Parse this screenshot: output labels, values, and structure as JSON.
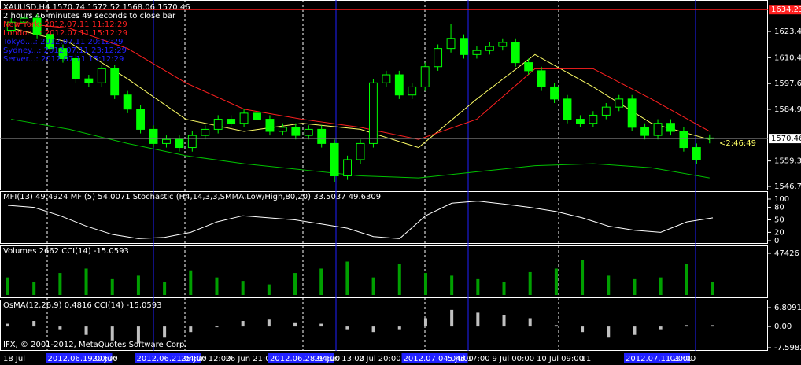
{
  "chart_data": {
    "type": "candlestick",
    "title": "XAUUSD,H4  1570.74 1572.52 1568.06 1570.46",
    "subtitle": "2 hours 46 minutes 49 seconds to close bar",
    "clocks": [
      {
        "text": "New York: 2012.07.11 11:12:29",
        "color": "#ff2020"
      },
      {
        "text": "London...: 2012.07.11 15:12:29",
        "color": "#ff2020"
      },
      {
        "text": "Tokyo....: 2012.07.11 20:12:29",
        "color": "#2020ff"
      },
      {
        "text": "Sydney...: 2012.07.11 23:12:29",
        "color": "#2020ff"
      },
      {
        "text": "Server...: 2012.07.11 15:12:29",
        "color": "#2020ff"
      }
    ],
    "open": [
      1624,
      1628,
      1630,
      1622,
      1615,
      1610,
      1600,
      1598,
      1605,
      1592,
      1585,
      1575,
      1568,
      1570,
      1566,
      1572,
      1575,
      1580,
      1578,
      1583,
      1580,
      1574,
      1576,
      1572,
      1575,
      1568,
      1552,
      1560,
      1568,
      1598,
      1602,
      1592,
      1596,
      1606,
      1615,
      1620,
      1612,
      1614,
      1616,
      1618,
      1608,
      1604,
      1596,
      1590,
      1580,
      1578,
      1582,
      1586,
      1590,
      1576,
      1572,
      1578,
      1574,
      1566,
      1570.74
    ],
    "high": [
      1630,
      1632,
      1632,
      1624,
      1617,
      1612,
      1602,
      1607,
      1607,
      1594,
      1587,
      1577,
      1572,
      1572,
      1574,
      1577,
      1582,
      1582,
      1585,
      1585,
      1582,
      1578,
      1578,
      1577,
      1577,
      1570,
      1562,
      1570,
      1600,
      1604,
      1604,
      1598,
      1608,
      1617,
      1627,
      1622,
      1616,
      1618,
      1620,
      1620,
      1610,
      1606,
      1598,
      1592,
      1582,
      1584,
      1588,
      1592,
      1592,
      1578,
      1580,
      1580,
      1576,
      1568,
      1572.52
    ],
    "low": [
      1622,
      1626,
      1620,
      1613,
      1608,
      1598,
      1596,
      1596,
      1590,
      1583,
      1573,
      1566,
      1566,
      1564,
      1564,
      1570,
      1573,
      1576,
      1576,
      1578,
      1572,
      1572,
      1570,
      1570,
      1566,
      1549,
      1550,
      1558,
      1566,
      1596,
      1590,
      1590,
      1594,
      1604,
      1613,
      1610,
      1610,
      1612,
      1614,
      1606,
      1602,
      1594,
      1588,
      1578,
      1576,
      1576,
      1580,
      1584,
      1574,
      1570,
      1570,
      1572,
      1564,
      1558,
      1568.06
    ],
    "close": [
      1628,
      1630,
      1622,
      1615,
      1610,
      1600,
      1598,
      1605,
      1592,
      1585,
      1575,
      1568,
      1570,
      1566,
      1572,
      1575,
      1580,
      1578,
      1583,
      1580,
      1574,
      1576,
      1572,
      1575,
      1568,
      1552,
      1560,
      1568,
      1598,
      1602,
      1592,
      1596,
      1606,
      1615,
      1620,
      1612,
      1614,
      1616,
      1618,
      1608,
      1604,
      1596,
      1590,
      1580,
      1578,
      1582,
      1586,
      1590,
      1576,
      1572,
      1578,
      1574,
      1566,
      1560,
      1570.46
    ],
    "bull_color": "#00ff00",
    "bear_color": "#00ff00",
    "moving_averages": [
      {
        "color": "#ffff66",
        "values": [
          1625,
          1618,
          1600,
          1580,
          1574,
          1578,
          1575,
          1566,
          1590,
          1612,
          1596,
          1578,
          1570
        ]
      },
      {
        "color": "#ff2020",
        "values": [
          1628,
          1625,
          1615,
          1598,
          1585,
          1580,
          1576,
          1570,
          1580,
          1605,
          1605,
          1590,
          1574
        ]
      },
      {
        "color": "#00c000",
        "values": [
          1580,
          1575,
          1568,
          1562,
          1558,
          1555,
          1552,
          1551,
          1554,
          1557,
          1558,
          1556,
          1551
        ]
      }
    ],
    "ylim": [
      1545.2,
      1638.2
    ],
    "yticks": [
      {
        "value": 1623.4,
        "label": "1623.40"
      },
      1610.45,
      1597.65,
      {
        "value": 1584.9,
        "label": "1584.90"
      },
      1559.35,
      1546.75
    ],
    "top_level": {
      "value": 1634.23,
      "label": "1634.23"
    },
    "current_price": {
      "value": 1570.46,
      "label": "1570.46"
    },
    "timer": "<2:46:49",
    "x_labels": [
      {
        "label": "18 Jul",
        "highlight": false
      },
      {
        "label": "2012.06.19 00:00",
        "highlight": true
      },
      {
        "label": "20 Jun",
        "highlight": false
      },
      {
        "label": "2012.06.21 04:00",
        "highlight": true
      },
      {
        "label": "25 Jun 12:00",
        "highlight": false
      },
      {
        "label": "26 Jun 21:00",
        "highlight": false
      },
      {
        "label": "2012.06.28 04:00",
        "highlight": true
      },
      {
        "label": "29 Jun 13:00",
        "highlight": false
      },
      {
        "label": "2 Jul 20:00",
        "highlight": false
      },
      {
        "label": "2012.07.04 04:00",
        "highlight": true
      },
      {
        "label": "5 Jul 17:00",
        "highlight": false
      },
      {
        "label": "9 Jul 00:00",
        "highlight": false
      },
      {
        "label": "10 Jul 09:00",
        "highlight": false
      },
      {
        "label": "11",
        "highlight": false
      },
      {
        "label": "2012.07.11 20:00",
        "highlight": true
      },
      {
        "label": "01:00",
        "highlight": false
      }
    ],
    "panels": [
      {
        "kind": "line",
        "label": "MFI(13) 49.4924  MFI(5) 54.0071  Stochastic (H4,14,3,3,SMMA,Low/High,80,20) 33.5037 49.6309",
        "color": "#ffffff",
        "ylim": [
          0,
          100
        ],
        "yticks": [
          0,
          20,
          50,
          80,
          100
        ],
        "values": [
          85,
          80,
          60,
          35,
          15,
          5,
          8,
          20,
          45,
          60,
          55,
          50,
          40,
          30,
          10,
          5,
          60,
          90,
          95,
          88,
          80,
          70,
          55,
          35,
          25,
          20,
          45,
          55
        ]
      },
      {
        "kind": "bars",
        "label": "Volumes 2662  CCI(14) -15.0593",
        "color": "#00a000",
        "ylim": [
          0,
          47426
        ],
        "yticks": [
          47426
        ],
        "values": [
          20000,
          15000,
          25000,
          30000,
          18000,
          22000,
          15000,
          28000,
          20000,
          16000,
          12000,
          25000,
          30000,
          38000,
          20000,
          35000,
          25000,
          22000,
          18000,
          15000,
          26000,
          30000,
          40000,
          22000,
          18000,
          20000,
          35000,
          15000
        ]
      },
      {
        "kind": "bars",
        "label": "OsMA(12,26,9) 0.4816  CCI(14) -15.0593",
        "color": "#c0c0c0",
        "ylim": [
          -7.5982,
          6.8091
        ],
        "yticks": [
          6.8091,
          {
            "value": 0,
            "label": "0.00"
          },
          -7.5982
        ],
        "values": [
          1,
          2,
          -1,
          -3,
          -5,
          -6,
          -4,
          -2,
          0,
          2,
          2.5,
          1.5,
          1,
          -1,
          -2,
          -1,
          3,
          6,
          5,
          4,
          3,
          0.5,
          -2,
          -4,
          -3,
          -1,
          0.5,
          0.4816
        ]
      }
    ],
    "copyright": "IFX, © 2001-2012, MetaQuotes Software Corp."
  }
}
